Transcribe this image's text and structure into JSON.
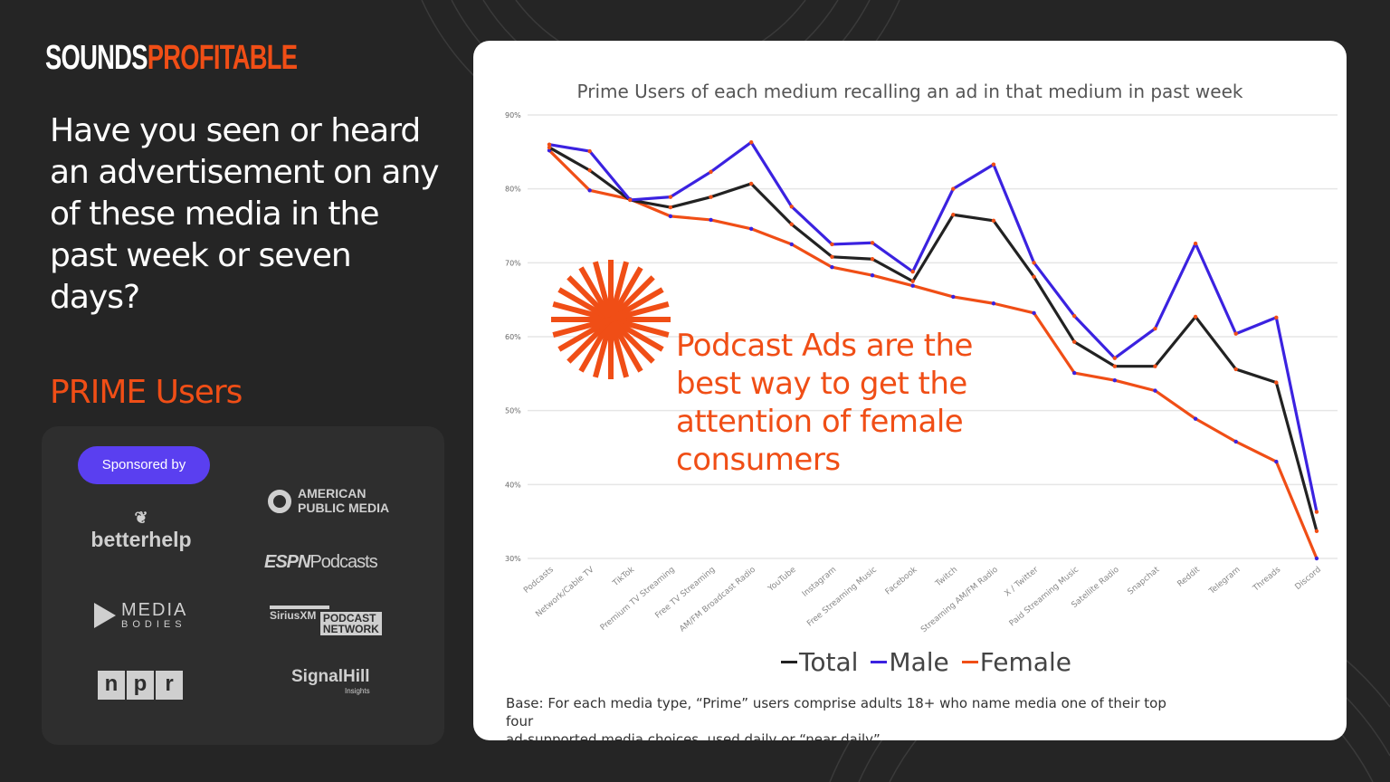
{
  "brand": {
    "logo_part1": "SOUNDS",
    "logo_part2": "PROFITABLE"
  },
  "question": "Have you seen or heard an advertisement on any of these media in the past week or seven days?",
  "segment": "PRIME Users",
  "sponsors": {
    "label": "Sponsored by",
    "logos": [
      "betterhelp",
      "AMERICAN",
      "PUBLIC MEDIA",
      "ESPN",
      "Podcasts",
      "MEDIA",
      "BODIES",
      "SiriusXM",
      "PODCAST",
      "NETWORK",
      "n",
      "p",
      "r",
      "SignalHill",
      "Insights"
    ]
  },
  "callout": [
    "Podcast Ads are the",
    "best way to get the",
    "attention of female",
    "consumers"
  ],
  "colors": {
    "background": "#252525",
    "accent": "#f04e16",
    "male": "#3b22e0",
    "total": "#222222",
    "female": "#f04e16",
    "sponsor_button": "#5a3ff0"
  },
  "footnote": [
    "Base: For each media type, “Prime” users comprise adults 18+ who name media one of their top four",
    "ad-supported media choices, used daily or “near daily”"
  ],
  "chart_data": {
    "type": "line",
    "title": "Prime Users of each medium recalling an ad in that medium in past week",
    "categories": [
      "Podcasts",
      "Network/Cable TV",
      "TikTok",
      "Premium TV Streaming",
      "Free TV Streaming",
      "AM/FM Broadcast Radio",
      "YouTube",
      "Instagram",
      "Free Streaming Music",
      "Facebook",
      "Twitch",
      "Streaming AM/FM Radio",
      "X / Twitter",
      "Paid Streaming Music",
      "Satellite Radio",
      "Snapchat",
      "Reddit",
      "Telegram",
      "Threads",
      "Discord"
    ],
    "ylim": [
      30,
      90
    ],
    "yticks": [
      "30%",
      "40%",
      "50%",
      "60%",
      "70%",
      "80%",
      "90%"
    ],
    "grid": true,
    "legend_position": "bottom",
    "series": [
      {
        "name": "Total",
        "color": "#222222",
        "values": [
          85.6,
          82.5,
          78.5,
          77.5,
          78.9,
          80.7,
          75.2,
          70.8,
          70.5,
          67.5,
          76.5,
          75.7,
          68.1,
          59.3,
          56.0,
          56.0,
          62.7,
          55.6,
          53.8,
          33.7
        ]
      },
      {
        "name": "Male",
        "color": "#3b22e0",
        "values": [
          86.0,
          85.1,
          78.5,
          78.9,
          82.3,
          86.3,
          77.6,
          72.5,
          72.7,
          68.8,
          80.0,
          83.3,
          70.0,
          62.8,
          57.1,
          61.1,
          72.6,
          60.4,
          62.6,
          36.3
        ]
      },
      {
        "name": "Female",
        "color": "#f04e16",
        "values": [
          85.2,
          79.8,
          78.6,
          76.3,
          75.8,
          74.6,
          72.5,
          69.4,
          68.3,
          66.9,
          65.4,
          64.5,
          63.2,
          55.1,
          54.1,
          52.7,
          48.9,
          45.8,
          43.1,
          30.0
        ]
      }
    ]
  }
}
